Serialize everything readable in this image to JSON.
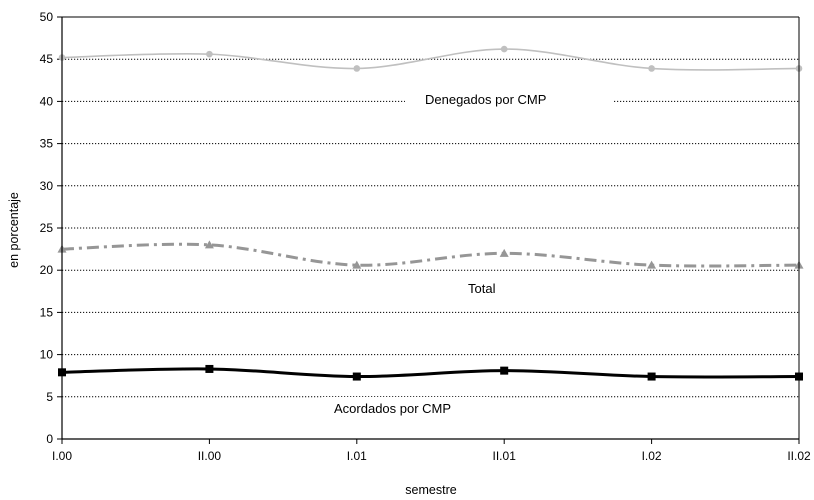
{
  "chart_data": {
    "type": "line",
    "title": "",
    "xlabel": "semestre",
    "ylabel": "en porcentaje",
    "categories": [
      "I.00",
      "II.00",
      "I.01",
      "II.01",
      "I.02",
      "II.02"
    ],
    "ylim": [
      0,
      50
    ],
    "yticks": [
      0,
      5,
      10,
      15,
      20,
      25,
      30,
      35,
      40,
      45,
      50
    ],
    "grid": "horizontal-dotted",
    "legend": "inline-labels",
    "series": [
      {
        "name": "Denegados por CMP",
        "values": [
          45.2,
          45.6,
          43.9,
          46.2,
          43.9,
          43.9
        ],
        "color": "#c0c0c0",
        "style": "solid",
        "marker": "circle"
      },
      {
        "name": "Total",
        "values": [
          22.5,
          23.0,
          20.6,
          22.0,
          20.6,
          20.6
        ],
        "color": "#969696",
        "style": "dashdot",
        "marker": "triangle"
      },
      {
        "name": "Acordados por CMP",
        "values": [
          7.9,
          8.3,
          7.4,
          8.1,
          7.4,
          7.4
        ],
        "color": "#000000",
        "style": "solid",
        "marker": "square"
      }
    ]
  }
}
